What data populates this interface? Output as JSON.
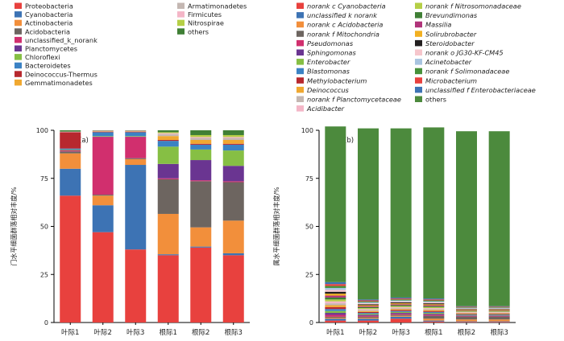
{
  "chart_data": [
    {
      "type": "bar",
      "stacked": true,
      "panel_label": "(a)",
      "ylabel": "门水平细菌群落相对丰度/%",
      "ylim": [
        0,
        100
      ],
      "yticks": [
        0,
        25,
        50,
        75,
        100
      ],
      "categories": [
        "叶际1",
        "叶际2",
        "叶际3",
        "根际1",
        "根际2",
        "根际3"
      ],
      "series": [
        {
          "name": "Proteobacteria",
          "color": "#e8413e",
          "values": [
            66,
            47,
            38,
            35,
            39,
            35
          ]
        },
        {
          "name": "Cyanobacteria",
          "color": "#3d73b4",
          "values": [
            14,
            14,
            44,
            0.5,
            0.5,
            1
          ]
        },
        {
          "name": "Actinobacteria",
          "color": "#f28f3b",
          "values": [
            8,
            5,
            3,
            21,
            10,
            17
          ]
        },
        {
          "name": "Acidobacteria",
          "color": "#6d6560",
          "values": [
            1,
            0.5,
            0.5,
            18,
            24,
            20
          ]
        },
        {
          "name": "unclassified_k_norank",
          "color": "#d12f6e",
          "values": [
            0.5,
            30,
            11,
            0.5,
            0.5,
            0.5
          ]
        },
        {
          "name": "Planctomycetes",
          "color": "#6a3591",
          "values": [
            0.2,
            0.2,
            0.2,
            7.5,
            10.5,
            8
          ]
        },
        {
          "name": "Chloroflexi",
          "color": "#86bf44",
          "values": [
            0.3,
            0.3,
            0.3,
            9,
            5.5,
            8
          ]
        },
        {
          "name": "Bacteroidetes",
          "color": "#3b82c4",
          "values": [
            0.5,
            2,
            2,
            3,
            2.5,
            3
          ]
        },
        {
          "name": "Deinococcus-Thermus",
          "color": "#b7282e",
          "values": [
            8.5,
            0.3,
            0.3,
            0.5,
            0.5,
            0.5
          ]
        },
        {
          "name": "Gemmatimonadetes",
          "color": "#f0a830",
          "values": [
            0,
            0.2,
            0.2,
            2,
            2,
            2
          ]
        },
        {
          "name": "Armatimonadetes",
          "color": "#c4b7b2",
          "values": [
            0,
            0,
            0,
            1,
            1,
            1
          ]
        },
        {
          "name": "Firmicutes",
          "color": "#f4b6c7",
          "values": [
            0.3,
            0.3,
            0.3,
            0.5,
            0.5,
            0.5
          ]
        },
        {
          "name": "Nitrospirae",
          "color": "#b5cf46",
          "values": [
            0,
            0,
            0,
            0.5,
            1,
            1
          ]
        },
        {
          "name": "others",
          "color": "#3f7f35",
          "values": [
            0.7,
            0.2,
            0.2,
            1,
            2.5,
            2.5
          ]
        }
      ]
    },
    {
      "type": "bar",
      "stacked": true,
      "panel_label": "(b)",
      "ylabel": "属水平细菌群落相对丰度/%",
      "ylim": [
        0,
        100
      ],
      "yticks": [
        0,
        25,
        50,
        75,
        100
      ],
      "categories": [
        "叶际1",
        "叶际2",
        "叶际3",
        "根际1",
        "根际2",
        "根际3"
      ],
      "series": [
        {
          "name": "norank_c_Cyanobacteria",
          "color": "#e8413e",
          "values": [
            1,
            1,
            2,
            0.5,
            0.3,
            0.3
          ]
        },
        {
          "name": "unclassified_k_norank",
          "color": "#3d73b4",
          "values": [
            1,
            1,
            1,
            0.5,
            0.3,
            0.3
          ]
        },
        {
          "name": "norank_c_Acidobacteria",
          "color": "#f28f3b",
          "values": [
            0.5,
            0.5,
            0.5,
            1,
            1,
            1
          ]
        },
        {
          "name": "norank_f_Mitochondria",
          "color": "#6d6560",
          "values": [
            0.5,
            0.5,
            0.5,
            1.5,
            1.5,
            1.5
          ]
        },
        {
          "name": "Pseudomonas",
          "color": "#d12f6e",
          "values": [
            1,
            0.5,
            0.5,
            0.5,
            0.3,
            0.3
          ]
        },
        {
          "name": "Sphingomonas",
          "color": "#6a3591",
          "values": [
            1,
            0.5,
            0.5,
            0.5,
            0.3,
            0.3
          ]
        },
        {
          "name": "Enterobacter",
          "color": "#86bf44",
          "values": [
            1,
            0.5,
            0.5,
            0.5,
            0.3,
            0.3
          ]
        },
        {
          "name": "Blastomonas",
          "color": "#3b82c4",
          "values": [
            1,
            0.5,
            0.5,
            0.5,
            0.3,
            0.3
          ]
        },
        {
          "name": "Methylobacterium",
          "color": "#b7282e",
          "values": [
            1,
            0.5,
            0.5,
            0.5,
            0.3,
            0.3
          ]
        },
        {
          "name": "Deinococcus",
          "color": "#f0a830",
          "values": [
            1,
            0.5,
            0.5,
            0.5,
            0.3,
            0.3
          ]
        },
        {
          "name": "norank_f_Planctomycetaceae",
          "color": "#c4b7b2",
          "values": [
            1,
            0.5,
            0.5,
            0.5,
            0.3,
            0.3
          ]
        },
        {
          "name": "Acidibacter",
          "color": "#f4b6c7",
          "values": [
            1,
            0.5,
            0.5,
            0.5,
            0.3,
            0.3
          ]
        },
        {
          "name": "norank_f_Nitrosomonadaceae",
          "color": "#b5cf46",
          "values": [
            1,
            0.5,
            0.5,
            0.5,
            0.3,
            0.3
          ]
        },
        {
          "name": "Brevundimonas",
          "color": "#3f7f35",
          "values": [
            1,
            0.5,
            0.5,
            0.5,
            0.3,
            0.3
          ]
        },
        {
          "name": "Massilia",
          "color": "#b0347a",
          "values": [
            1,
            0.5,
            0.5,
            0.5,
            0.3,
            0.3
          ]
        },
        {
          "name": "Solirubrobacter",
          "color": "#f2b020",
          "values": [
            1,
            0.5,
            0.5,
            0.5,
            0.3,
            0.3
          ]
        },
        {
          "name": "Steroidobacter",
          "color": "#231f20",
          "values": [
            1,
            0.5,
            0.5,
            0.5,
            0.3,
            0.3
          ]
        },
        {
          "name": "norank_o_JG30-KF-CM45",
          "color": "#f6c6cc",
          "values": [
            1,
            0.5,
            0.5,
            0.5,
            0.3,
            0.3
          ]
        },
        {
          "name": "Acinetobacter",
          "color": "#a8c4e0",
          "values": [
            1,
            0.5,
            0.5,
            0.5,
            0.3,
            0.3
          ]
        },
        {
          "name": "norank_f_Solimonadaceae",
          "color": "#47913a",
          "values": [
            1,
            0.5,
            0.5,
            0.5,
            0.3,
            0.3
          ]
        },
        {
          "name": "Microbacterium",
          "color": "#e8413e",
          "values": [
            1,
            0.5,
            0.5,
            0.5,
            0.3,
            0.3
          ]
        },
        {
          "name": "unclassified_f_Enterobacteriaceae",
          "color": "#3d73b4",
          "values": [
            1,
            0.5,
            0.5,
            0.5,
            0.3,
            0.3
          ]
        },
        {
          "name": "others",
          "color": "#4c8a3d",
          "values": [
            81,
            89,
            88,
            89,
            91,
            91
          ]
        }
      ]
    }
  ]
}
